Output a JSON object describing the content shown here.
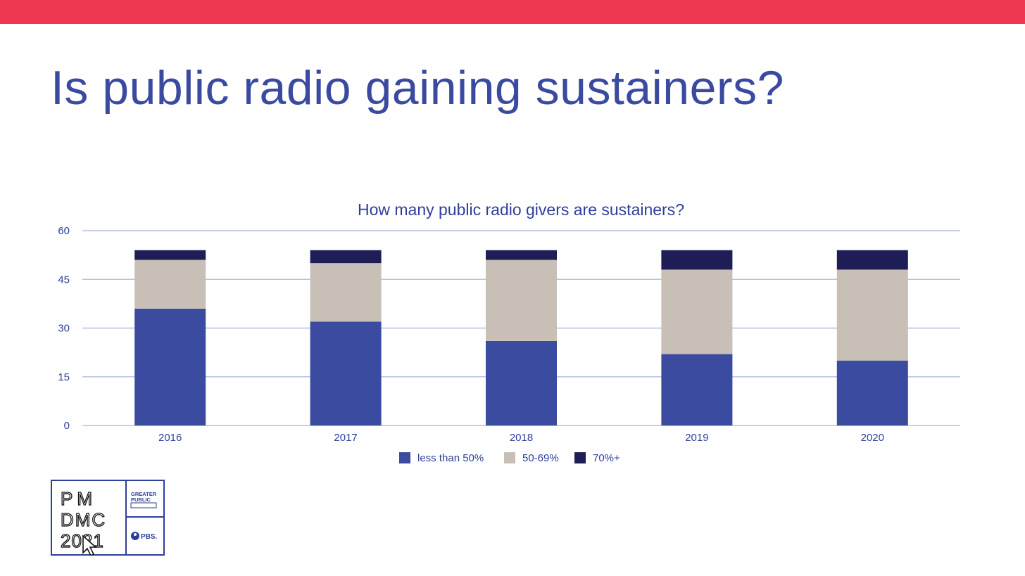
{
  "slide": {
    "title": "Is public radio gaining sustainers?",
    "accent_color": "#ef3751",
    "title_color": "#3a4aa0"
  },
  "logo": {
    "line1": "PM",
    "line2": "DMC",
    "line3": "2021",
    "partner1": "GREATER PUBLIC",
    "partner2": "PBS.",
    "icon": "cursor-arrow-icon"
  },
  "chart_data": {
    "type": "bar",
    "stacked": true,
    "title": "How many public radio givers are sustainers?",
    "categories": [
      "2016",
      "2017",
      "2018",
      "2019",
      "2020"
    ],
    "series": [
      {
        "name": "less than 50%",
        "color": "#3b4ba0",
        "values": [
          36,
          32,
          26,
          22,
          20
        ]
      },
      {
        "name": "50-69%",
        "color": "#c8bfb6",
        "values": [
          15,
          18,
          25,
          26,
          28
        ]
      },
      {
        "name": "70%+",
        "color": "#1e1d55",
        "values": [
          3,
          4,
          3,
          6,
          6
        ]
      }
    ],
    "ylim": [
      0,
      60
    ],
    "yticks": [
      0,
      15,
      30,
      45,
      60
    ],
    "grid": true,
    "legend": "bottom",
    "xlabel": "",
    "ylabel": ""
  }
}
